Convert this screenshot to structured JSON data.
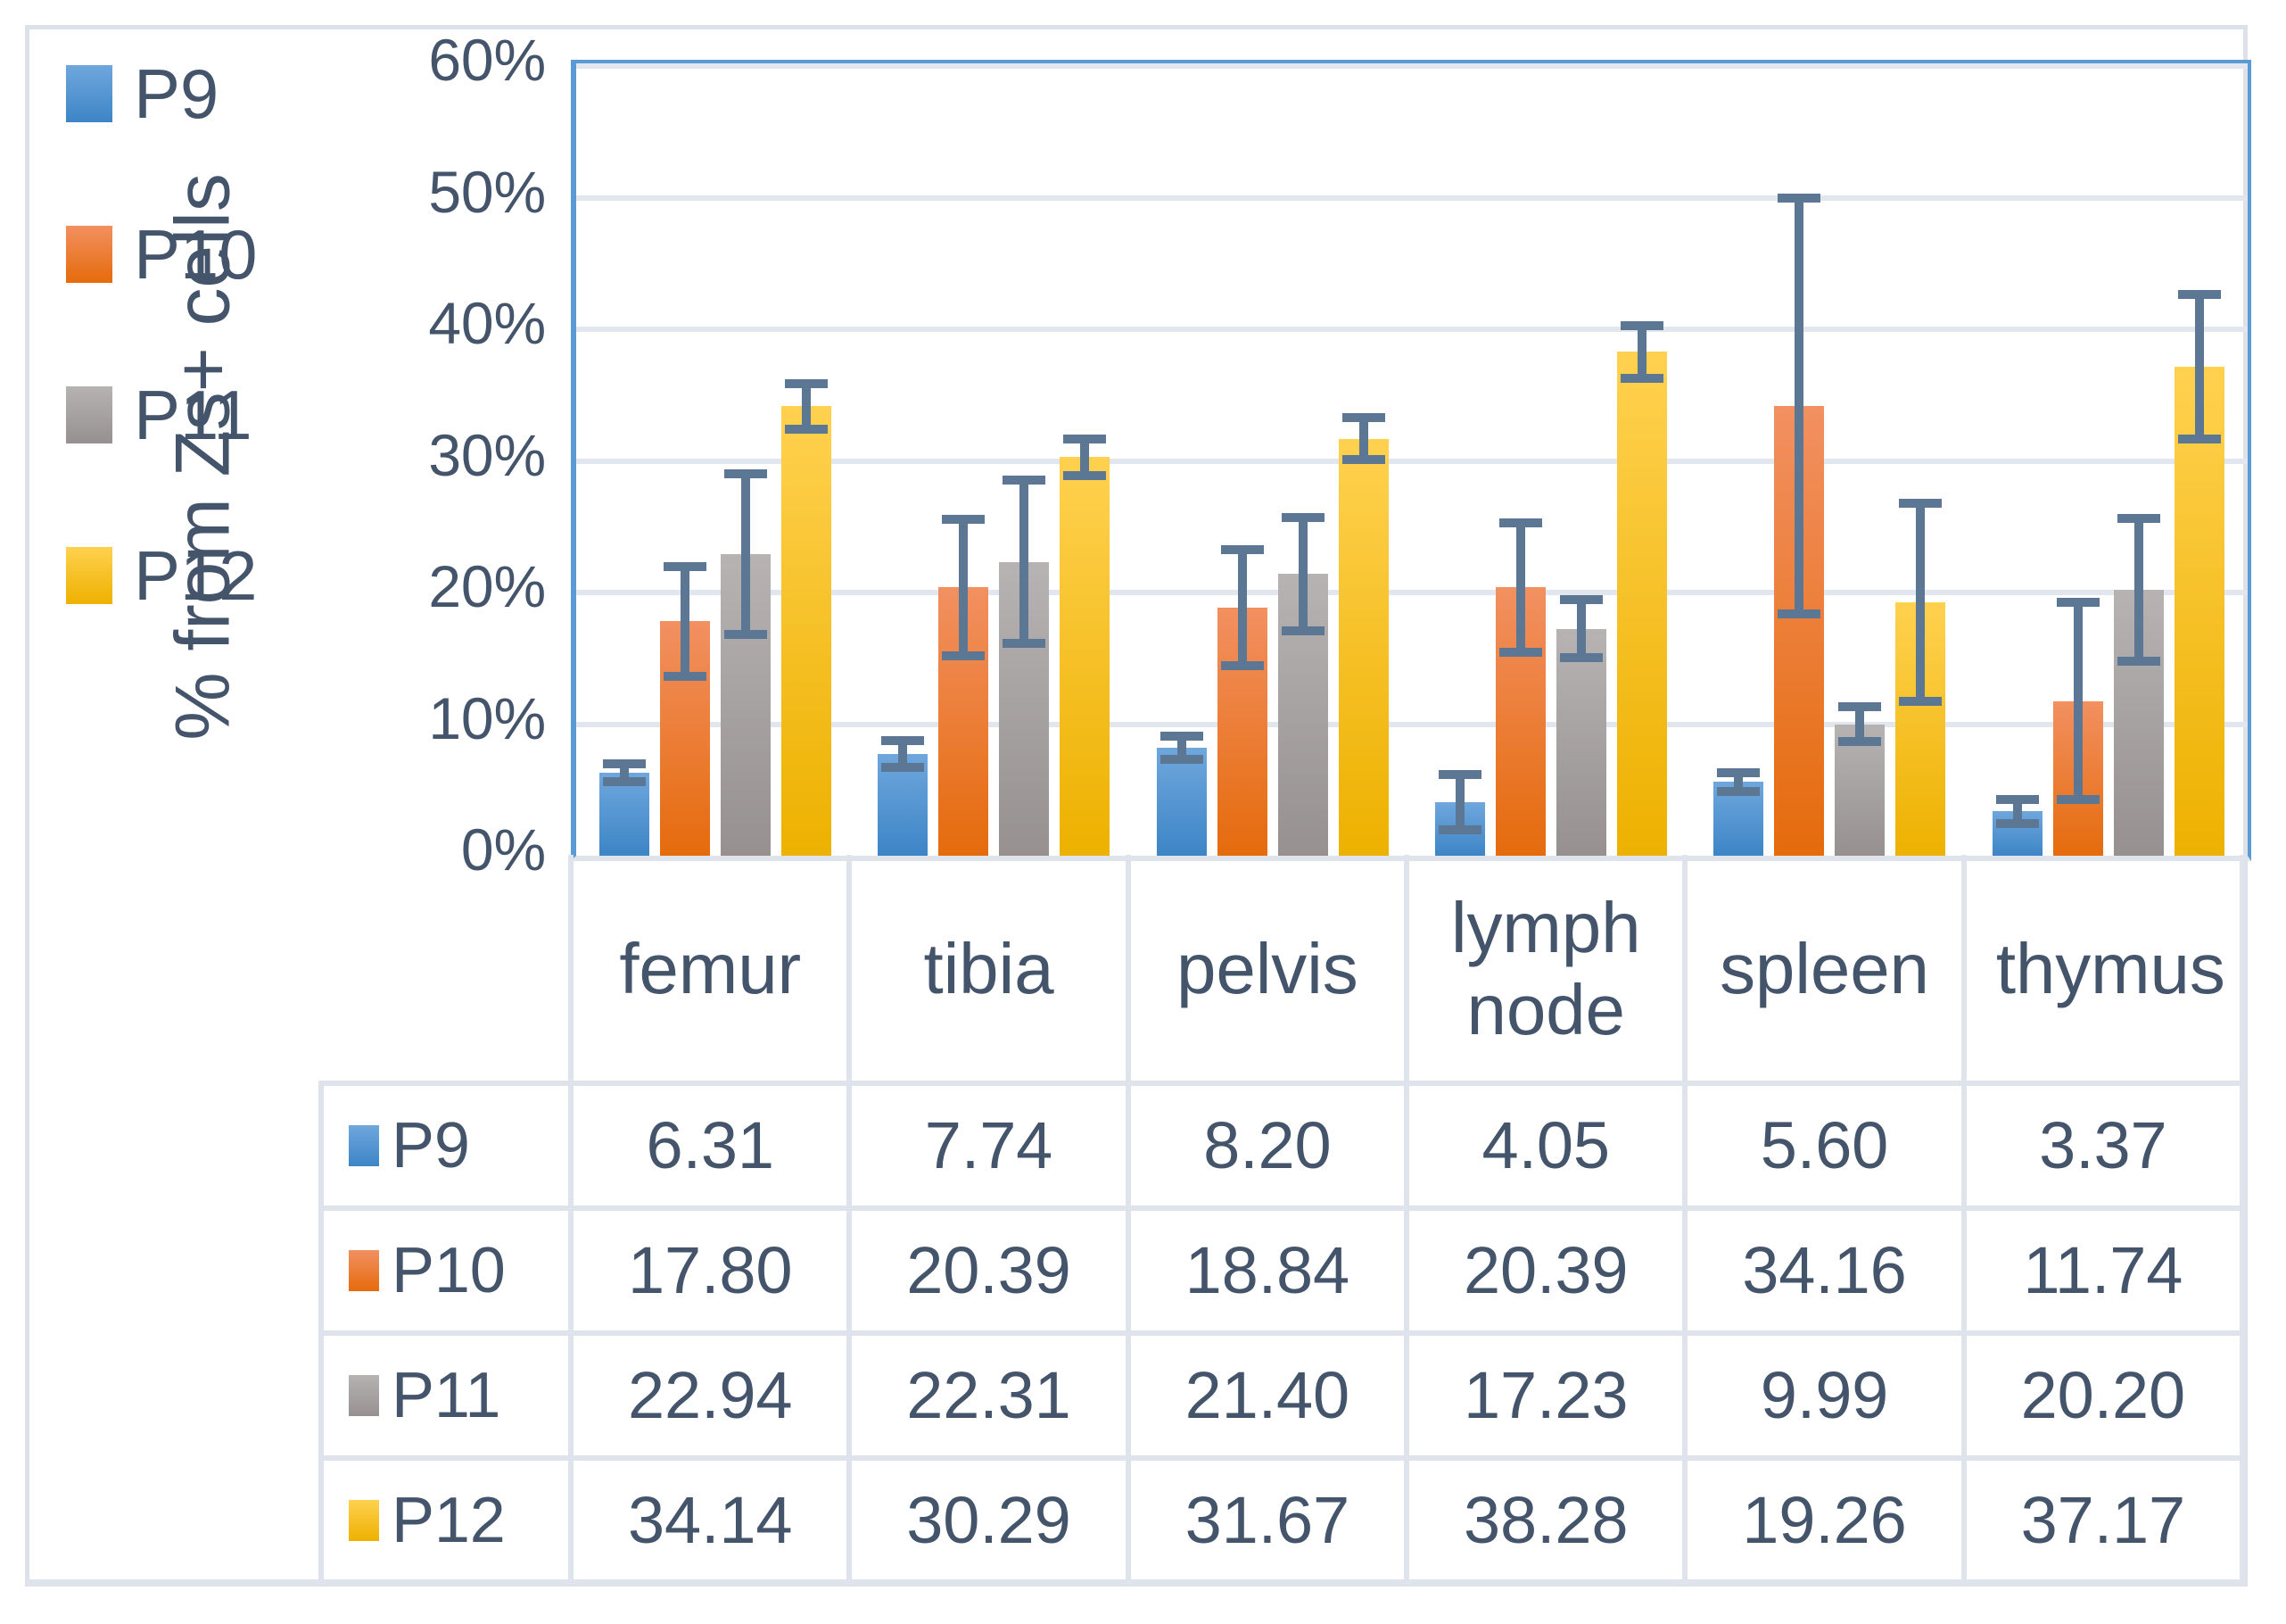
{
  "chart_data": {
    "type": "bar",
    "title": "",
    "xlabel": "",
    "ylabel": "% from Zs+ cells",
    "ylim": [
      0,
      60
    ],
    "ytick_labels": [
      "0%",
      "10%",
      "20%",
      "30%",
      "40%",
      "50%",
      "60%"
    ],
    "grid": true,
    "legend_position": "top-left",
    "error_bars": true,
    "categories": [
      "femur",
      "tibia",
      "pelvis",
      "lymph node",
      "spleen",
      "thymus"
    ],
    "series": [
      {
        "name": "P9",
        "color": "#4E94D4",
        "gradient": [
          "#6FA7DD",
          "#3D85C6"
        ],
        "values": [
          6.31,
          7.74,
          8.2,
          4.05,
          5.6,
          3.37
        ],
        "errors": [
          0.7,
          1.0,
          0.9,
          2.1,
          0.7,
          0.9
        ]
      },
      {
        "name": "P10",
        "color": "#ED7D31",
        "gradient": [
          "#F29061",
          "#E56B0C"
        ],
        "values": [
          17.8,
          20.39,
          18.84,
          20.39,
          34.16,
          11.74
        ],
        "errors": [
          4.2,
          5.2,
          4.4,
          4.9,
          15.8,
          7.5
        ]
      },
      {
        "name": "P11",
        "color": "#A5A5A5",
        "gradient": [
          "#B7B3B2",
          "#969190"
        ],
        "values": [
          22.94,
          22.31,
          21.4,
          17.23,
          9.99,
          20.2
        ],
        "errors": [
          6.1,
          6.2,
          4.3,
          2.2,
          1.3,
          5.4
        ]
      },
      {
        "name": "P12",
        "color": "#FFC000",
        "gradient": [
          "#FFD14F",
          "#EDB100"
        ],
        "values": [
          34.14,
          30.29,
          31.67,
          38.28,
          19.26,
          37.17
        ],
        "errors": [
          1.7,
          1.4,
          1.6,
          2.0,
          7.5,
          5.5
        ]
      }
    ]
  },
  "legend": {
    "items": [
      {
        "label": "P9"
      },
      {
        "label": "P10"
      },
      {
        "label": "P11"
      },
      {
        "label": "P12"
      }
    ]
  },
  "data_table": {
    "column_headers": [
      "femur",
      "tibia",
      "pelvis",
      "lymph node",
      "spleen",
      "thymus"
    ],
    "rows": [
      {
        "label": "P9",
        "cells": [
          "6.31",
          "7.74",
          "8.20",
          "4.05",
          "5.60",
          "3.37"
        ]
      },
      {
        "label": "P10",
        "cells": [
          "17.80",
          "20.39",
          "18.84",
          "20.39",
          "34.16",
          "11.74"
        ]
      },
      {
        "label": "P11",
        "cells": [
          "22.94",
          "22.31",
          "21.40",
          "17.23",
          "9.99",
          "20.20"
        ]
      },
      {
        "label": "P12",
        "cells": [
          "34.14",
          "30.29",
          "31.67",
          "38.28",
          "19.26",
          "37.17"
        ]
      }
    ]
  },
  "colors": {
    "text": "#44546A",
    "plot_border": "#5B9BD5",
    "gridline": "#e2e7ef",
    "table_border": "#dfe4ec",
    "error_bar": "#5B7794",
    "background": "#ffffff"
  }
}
